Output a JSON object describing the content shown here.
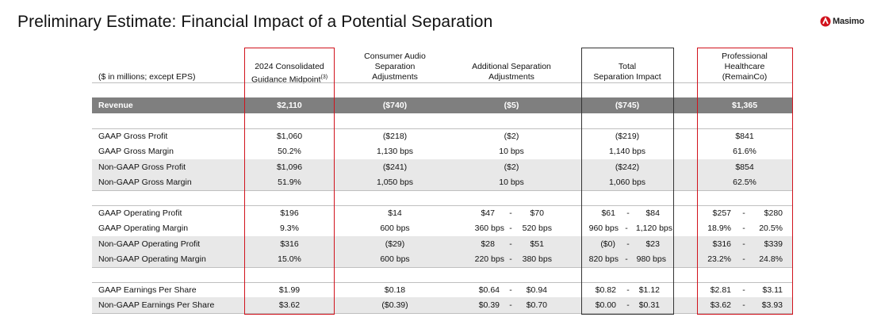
{
  "title": "Preliminary Estimate:  Financial Impact of a Potential Separation",
  "logo": {
    "text": "Masimo",
    "brand_color": "#d1121c"
  },
  "units_label": "($ in millions; except EPS)",
  "columns": [
    {
      "id": "consolidated",
      "lines": [
        "2024 Consolidated",
        "Guidance Midpoint"
      ],
      "superscript": "(3)"
    },
    {
      "id": "audio",
      "lines": [
        "Consumer Audio",
        "Separation",
        "Adjustments"
      ]
    },
    {
      "id": "additional",
      "lines": [
        "Additional Separation",
        "Adjustments"
      ]
    },
    {
      "id": "total",
      "lines": [
        "Total",
        "Separation Impact"
      ]
    },
    {
      "id": "remainco",
      "lines": [
        "Professional",
        "Healthcare",
        "(RemainCo)"
      ]
    }
  ],
  "rows": {
    "revenue": {
      "label": "Revenue",
      "values": [
        "$2,110",
        "($740)",
        "($5)",
        "($745)",
        "$1,365"
      ]
    },
    "gaap_gross_profit": {
      "label": "GAAP Gross Profit",
      "values": [
        "$1,060",
        "($218)",
        "($2)",
        "($219)",
        "$841"
      ]
    },
    "gaap_gross_margin": {
      "label": "GAAP Gross Margin",
      "values": [
        "50.2%",
        "1,130 bps",
        "10 bps",
        "1,140 bps",
        "61.6%"
      ]
    },
    "nongaap_gross_profit": {
      "label": "Non-GAAP Gross Profit",
      "values": [
        "$1,096",
        "($241)",
        "($2)",
        "($242)",
        "$854"
      ]
    },
    "nongaap_gross_margin": {
      "label": "Non-GAAP Gross Margin",
      "values": [
        "51.9%",
        "1,050 bps",
        "10 bps",
        "1,060 bps",
        "62.5%"
      ]
    },
    "gaap_op_profit": {
      "label": "GAAP Operating Profit",
      "values": [
        "$196",
        "$14"
      ],
      "ranges": {
        "additional": [
          "$47",
          "$70"
        ],
        "total": [
          "$61",
          "$84"
        ],
        "remainco": [
          "$257",
          "$280"
        ]
      }
    },
    "gaap_op_margin": {
      "label": "GAAP Operating Margin",
      "values": [
        "9.3%",
        "600 bps"
      ],
      "ranges": {
        "additional": [
          "360 bps",
          "520 bps"
        ],
        "total": [
          "960 bps",
          "1,120 bps"
        ],
        "remainco": [
          "18.9%",
          "20.5%"
        ]
      }
    },
    "nongaap_op_profit": {
      "label": "Non-GAAP Operating Profit",
      "values": [
        "$316",
        "($29)"
      ],
      "ranges": {
        "additional": [
          "$28",
          "$51"
        ],
        "total": [
          "($0)",
          "$23"
        ],
        "remainco": [
          "$316",
          "$339"
        ]
      }
    },
    "nongaap_op_margin": {
      "label": "Non-GAAP Operating Margin",
      "values": [
        "15.0%",
        "600 bps"
      ],
      "ranges": {
        "additional": [
          "220 bps",
          "380 bps"
        ],
        "total": [
          "820 bps",
          "980 bps"
        ],
        "remainco": [
          "23.2%",
          "24.8%"
        ]
      }
    },
    "gaap_eps": {
      "label": "GAAP Earnings Per Share",
      "values": [
        "$1.99",
        "$0.18"
      ],
      "ranges": {
        "additional": [
          "$0.64",
          "$0.94"
        ],
        "total": [
          "$0.82",
          "$1.12"
        ],
        "remainco": [
          "$2.81",
          "$3.11"
        ]
      }
    },
    "nongaap_eps": {
      "label": "Non-GAAP Earnings Per Share",
      "values": [
        "$3.62",
        "($0.39)"
      ],
      "ranges": {
        "additional": [
          "$0.39",
          "$0.70"
        ],
        "total": [
          "$0.00",
          "$0.31"
        ],
        "remainco": [
          "$3.62",
          "$3.93"
        ]
      }
    }
  },
  "range_separator": "-",
  "colors": {
    "revenue_band": "#7f7f7f",
    "alt_band": "#e8e8e8",
    "highlight_border": "#d1121c",
    "rule": "#bfbfbf"
  }
}
